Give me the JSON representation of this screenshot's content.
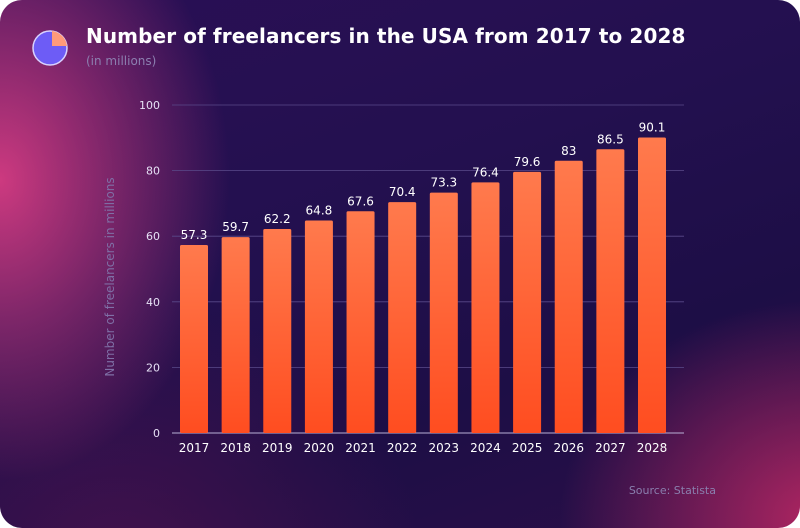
{
  "header": {
    "title": "Number of freelancers in the USA from 2017 to 2028",
    "subtitle": "(in millions)",
    "logo_icon": "pie-chart-icon"
  },
  "footer": {
    "source": "Source: Statista"
  },
  "colors": {
    "bar_top": "#ff7a4d",
    "bar_bottom": "#ff4d20",
    "logo_primary": "#6d5cf6",
    "logo_accent": "#ff9a7a"
  },
  "chart_data": {
    "type": "bar",
    "title": "Number of freelancers in the USA from 2017 to 2028",
    "subtitle": "(in millions)",
    "xlabel": "",
    "ylabel": "Number of freelancers in millions",
    "categories": [
      "2017",
      "2018",
      "2019",
      "2020",
      "2021",
      "2022",
      "2023",
      "2024",
      "2025",
      "2026",
      "2027",
      "2028"
    ],
    "values": [
      57.3,
      59.7,
      62.2,
      64.8,
      67.6,
      70.4,
      73.3,
      76.4,
      79.6,
      83,
      86.5,
      90.1
    ],
    "value_labels": [
      "57.3",
      "59.7",
      "62.2",
      "64.8",
      "67.6",
      "70.4",
      "73.3",
      "76.4",
      "79.6",
      "83",
      "86.5",
      "90.1"
    ],
    "ylim": [
      0,
      100
    ],
    "yticks": [
      "0",
      "20",
      "40",
      "60",
      "80",
      "100"
    ],
    "grid": true,
    "legend": "none"
  }
}
